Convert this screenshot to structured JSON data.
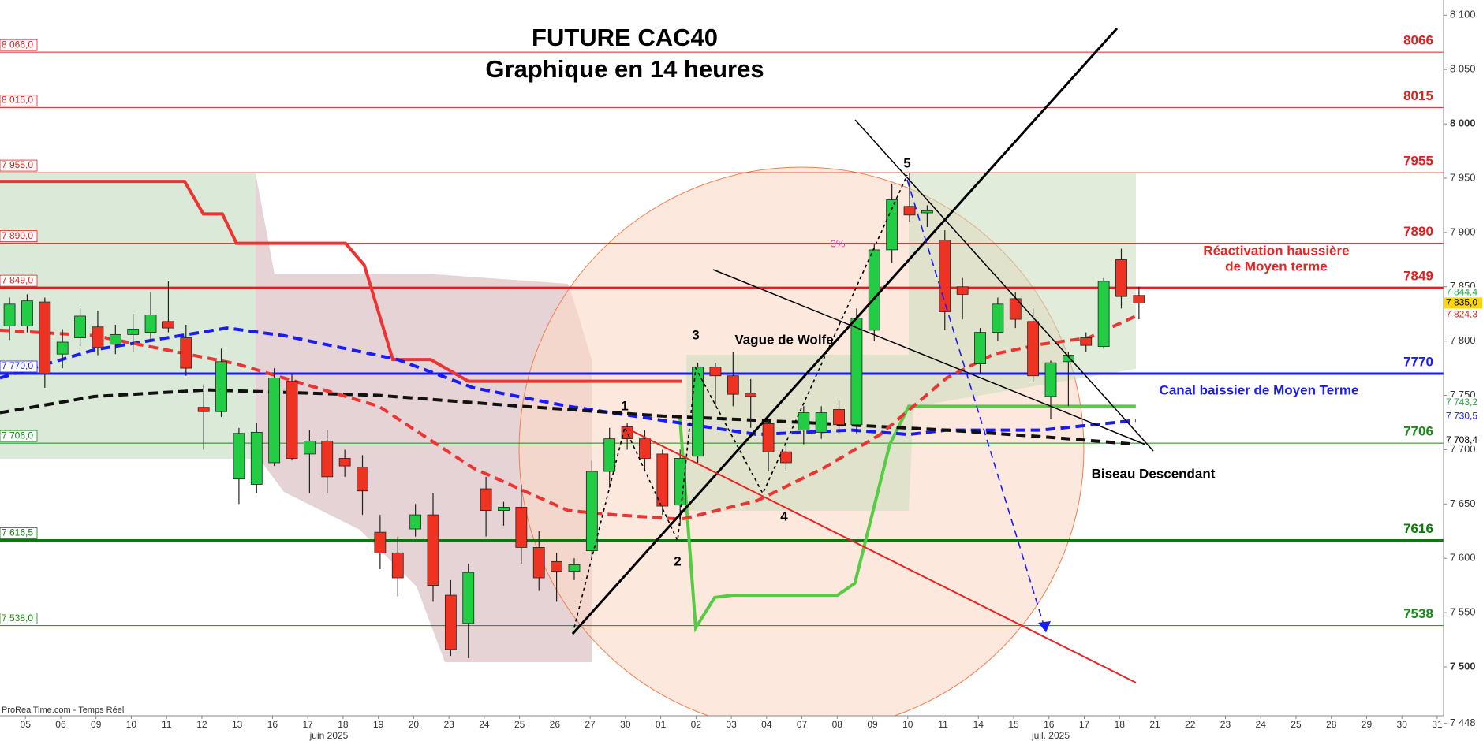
{
  "chart_data": {
    "type": "candlestick",
    "title": "FUTURE CAC40",
    "subtitle": "Graphique en 14 heures",
    "source": "ProRealTime.com - Temps Réel",
    "x": [
      -0.45,
      0.05,
      0.55,
      1.05,
      1.55,
      2.05,
      2.55,
      3.05,
      3.55,
      4.05,
      4.55,
      5.05,
      5.55,
      6.05,
      6.55,
      7.05,
      7.55,
      8.05,
      8.55,
      9.05,
      9.55,
      10.05,
      10.55,
      11.05,
      11.55,
      12.05,
      12.55,
      13.05,
      13.55,
      14.05,
      14.55,
      15.05,
      15.55,
      16.05,
      16.55,
      17.05,
      17.55,
      18.05,
      18.55,
      19.05,
      19.55,
      20.05,
      20.55,
      21.05,
      21.55,
      22.05,
      22.55,
      23.05,
      23.55,
      24.05,
      24.55,
      25.05,
      25.55,
      26.05,
      26.55,
      27.05,
      27.55,
      28.05,
      28.55,
      29.05,
      29.55,
      30.05,
      30.55,
      31.05,
      31.55
    ],
    "open": [
      7814,
      7814,
      7836,
      7788,
      7803,
      7813,
      7797,
      7806,
      7808,
      7818,
      7803,
      7739,
      7735,
      7673,
      7668,
      7688,
      7763,
      7696,
      7708,
      7692,
      7684,
      7624,
      7605,
      7627,
      7640,
      7566,
      7540,
      7664,
      7644,
      7647,
      7610,
      7597,
      7588,
      7607,
      7680,
      7721,
      7710,
      7696,
      7649,
      7694,
      7776,
      7768,
      7752,
      7724,
      7698,
      7718,
      7716,
      7737,
      7723,
      7810,
      7884,
      7924,
      7918,
      7893,
      7850,
      7779,
      7808,
      7839,
      7818,
      7749,
      7781,
      7803,
      7795,
      7875,
      7842
    ],
    "high": [
      7840,
      7843,
      7840,
      7811,
      7830,
      7828,
      7815,
      7825,
      7845,
      7855,
      7815,
      7760,
      7793,
      7720,
      7725,
      7775,
      7770,
      7718,
      7718,
      7700,
      7695,
      7640,
      7620,
      7650,
      7660,
      7580,
      7595,
      7675,
      7652,
      7668,
      7625,
      7605,
      7600,
      7690,
      7720,
      7725,
      7718,
      7700,
      7700,
      7780,
      7780,
      7790,
      7765,
      7728,
      7705,
      7740,
      7740,
      7745,
      7830,
      7890,
      7945,
      7955,
      7925,
      7902,
      7858,
      7812,
      7840,
      7845,
      7830,
      7782,
      7790,
      7808,
      7858,
      7885,
      7850
    ],
    "low": [
      7801,
      7808,
      7757,
      7775,
      7795,
      7787,
      7788,
      7790,
      7800,
      7808,
      7768,
      7700,
      7730,
      7650,
      7660,
      7685,
      7690,
      7660,
      7660,
      7675,
      7640,
      7590,
      7565,
      7620,
      7560,
      7510,
      7508,
      7620,
      7630,
      7595,
      7570,
      7560,
      7580,
      7600,
      7665,
      7700,
      7680,
      7640,
      7630,
      7688,
      7740,
      7740,
      7720,
      7680,
      7680,
      7705,
      7710,
      7715,
      7715,
      7800,
      7872,
      7910,
      7905,
      7810,
      7820,
      7770,
      7800,
      7812,
      7762,
      7728,
      7740,
      7790,
      7793,
      7830,
      7820
    ],
    "close": [
      7834,
      7837,
      7770,
      7799,
      7823,
      7794,
      7806,
      7811,
      7824,
      7812,
      7775,
      7735,
      7781,
      7715,
      7716,
      7766,
      7692,
      7708,
      7675,
      7685,
      7662,
      7605,
      7582,
      7640,
      7575,
      7516,
      7587,
      7644,
      7647,
      7610,
      7582,
      7588,
      7594,
      7680,
      7710,
      7710,
      7692,
      7648,
      7692,
      7776,
      7768,
      7751,
      7749,
      7698,
      7688,
      7734,
      7734,
      7723,
      7821,
      7884,
      7930,
      7916,
      7920,
      7827,
      7843,
      7808,
      7834,
      7820,
      7768,
      7780,
      7787,
      7796,
      7855,
      7841,
      7835
    ],
    "up_color": "#22cc44",
    "down_color": "#ee3322",
    "xlim": [
      -0.72,
      40.18
    ],
    "ylim": [
      7455,
      8114
    ],
    "xticks": [
      {
        "value": 0,
        "label": "05"
      },
      {
        "value": 1,
        "label": "06"
      },
      {
        "value": 2,
        "label": "09"
      },
      {
        "value": 3,
        "label": "10"
      },
      {
        "value": 4,
        "label": "11"
      },
      {
        "value": 5,
        "label": "12"
      },
      {
        "value": 6,
        "label": "13"
      },
      {
        "value": 7,
        "label": "16"
      },
      {
        "value": 8,
        "label": "17"
      },
      {
        "value": 9,
        "label": "18"
      },
      {
        "value": 10,
        "label": "19"
      },
      {
        "value": 11,
        "label": "20"
      },
      {
        "value": 12,
        "label": "23"
      },
      {
        "value": 13,
        "label": "24"
      },
      {
        "value": 14,
        "label": "25"
      },
      {
        "value": 15,
        "label": "26"
      },
      {
        "value": 16,
        "label": "27"
      },
      {
        "value": 17,
        "label": "30"
      },
      {
        "value": 18,
        "label": "01"
      },
      {
        "value": 19,
        "label": "02"
      },
      {
        "value": 20,
        "label": "03"
      },
      {
        "value": 21,
        "label": "04"
      },
      {
        "value": 22,
        "label": "07"
      },
      {
        "value": 23,
        "label": "08"
      },
      {
        "value": 24,
        "label": "09"
      },
      {
        "value": 25,
        "label": "10"
      },
      {
        "value": 26,
        "label": "11"
      },
      {
        "value": 27,
        "label": "14"
      },
      {
        "value": 28,
        "label": "15"
      },
      {
        "value": 29,
        "label": "16"
      },
      {
        "value": 30,
        "label": "17"
      },
      {
        "value": 31,
        "label": "18"
      },
      {
        "value": 32,
        "label": "21"
      },
      {
        "value": 33,
        "label": "22"
      },
      {
        "value": 34,
        "label": "23"
      },
      {
        "value": 35,
        "label": "24"
      },
      {
        "value": 36,
        "label": "25"
      },
      {
        "value": 37,
        "label": "28"
      },
      {
        "value": 38,
        "label": "29"
      },
      {
        "value": 39,
        "label": "30"
      },
      {
        "value": 40,
        "label": "31"
      }
    ],
    "month_labels": [
      {
        "value": 8.6,
        "label": "juin 2025"
      },
      {
        "value": 29.05,
        "label": "juil. 2025"
      }
    ],
    "yticks": [
      {
        "value": 7448,
        "label": "7 448"
      },
      {
        "value": 7500,
        "label": "7 500"
      },
      {
        "value": 7550,
        "label": "7 550"
      },
      {
        "value": 7600,
        "label": "7 600"
      },
      {
        "value": 7650,
        "label": "7 650"
      },
      {
        "value": 7700,
        "label": "7 700"
      },
      {
        "value": 7750,
        "label": "7 750"
      },
      {
        "value": 7800,
        "label": "7 800"
      },
      {
        "value": 7850,
        "label": "7 850"
      },
      {
        "value": 7900,
        "label": "7 900"
      },
      {
        "value": 7950,
        "label": "7 950"
      },
      {
        "value": 8000,
        "label": "8 000"
      },
      {
        "value": 8050,
        "label": "8 050"
      },
      {
        "value": 8100,
        "label": "8 100"
      }
    ],
    "levels": [
      {
        "value": 8066,
        "left_label": "8 066,0",
        "right_label": "8066",
        "color": "#e02020",
        "weight": "thin"
      },
      {
        "value": 8015,
        "left_label": "8 015,0",
        "right_label": "8015",
        "color": "#e02020",
        "weight": "thin"
      },
      {
        "value": 7955,
        "left_label": "7 955,0",
        "right_label": "7955",
        "color": "#e02020",
        "weight": "thin"
      },
      {
        "value": 7890,
        "left_label": "7 890,0",
        "right_label": "7890",
        "color": "#e02020",
        "weight": "thin"
      },
      {
        "value": 7849,
        "left_label": "7 849,0",
        "right_label": "7849",
        "color": "#e02020",
        "weight": "thick"
      },
      {
        "value": 7770,
        "left_label": "7 770,0",
        "right_label": "7770",
        "color": "#1a1aff",
        "weight": "thick"
      },
      {
        "value": 7706,
        "left_label": "7 706,0",
        "right_label": "7706",
        "color": "#1a8a1a",
        "weight": "thin"
      },
      {
        "value": 7616.5,
        "left_label": "7 616,5",
        "right_label": "7616",
        "color": "#0a7a0a",
        "weight": "thick"
      },
      {
        "value": 7538,
        "left_label": "7 538,0",
        "right_label": "7538",
        "color": "#1a8a1a",
        "weight": "thin"
      }
    ],
    "price_tags": [
      {
        "value": 7844.4,
        "label": "7 844,4",
        "color": "#22aa44",
        "fill": "#ffffff"
      },
      {
        "value": 7835,
        "label": "7 835,0",
        "color": "#000000",
        "fill": "#ffd700"
      },
      {
        "value": 7824.3,
        "label": "7 824,3",
        "color": "#e02020",
        "fill": "#ffffff"
      },
      {
        "value": 7743.2,
        "label": "7 743,2",
        "color": "#22aa44",
        "fill": "#ffffff"
      },
      {
        "value": 7730.5,
        "label": "7 730,5",
        "color": "#1a1aff",
        "fill": "#ffffff"
      },
      {
        "value": 7708.4,
        "label": "7 708,4",
        "color": "#000000",
        "fill": "#ffffff"
      }
    ],
    "lines": [
      {
        "color": "#ee3333",
        "dashed": false,
        "weight": "thick",
        "x": [
          -0.72,
          4.51,
          5.04,
          5.58,
          5.98,
          9.07,
          9.6,
          10.41,
          11.48,
          12.55,
          18.59
        ],
        "values": [
          7947,
          7947,
          7917,
          7917,
          7890,
          7890,
          7870,
          7783,
          7783,
          7763,
          7763
        ]
      },
      {
        "color": "#55cc44",
        "dashed": false,
        "weight": "thick",
        "x": [
          18.54,
          18.99,
          19.53,
          20.06,
          23.01,
          23.5,
          24.49,
          25.03,
          31.46
        ],
        "values": [
          7731,
          7536,
          7564,
          7566,
          7566,
          7577,
          7705,
          7740,
          7740
        ]
      },
      {
        "color": "#1a1aff",
        "dashed": true,
        "weight": "thick",
        "x": [
          -0.72,
          1.96,
          5.71,
          7.32,
          10.54,
          12.69,
          15.37,
          18.05,
          20.73,
          23.42,
          25.03,
          26.1,
          28.78,
          31.46
        ],
        "values": [
          7766,
          7792,
          7812,
          7805,
          7783,
          7757,
          7740,
          7727,
          7714,
          7718,
          7714,
          7718,
          7718,
          7727
        ]
      },
      {
        "color": "#111111",
        "dashed": true,
        "weight": "thick",
        "x": [
          -0.72,
          1.96,
          5.18,
          10.01,
          14.03,
          18.05,
          22.08,
          26.1,
          28.78,
          31.46
        ],
        "values": [
          7734,
          7749,
          7755,
          7750,
          7740,
          7731,
          7725,
          7718,
          7712,
          7705
        ]
      },
      {
        "color": "#ee3333",
        "dashed": true,
        "weight": "thick",
        "x": [
          -0.72,
          1.96,
          5.98,
          10.01,
          12.69,
          15.37,
          16.71,
          18.59,
          20.73,
          22.61,
          24.22,
          26.1,
          27.44,
          28.78,
          30.12,
          31.46
        ],
        "values": [
          7810,
          7805,
          7779,
          7740,
          7683,
          7644,
          7640,
          7636,
          7653,
          7683,
          7714,
          7766,
          7788,
          7797,
          7803,
          7823
        ]
      }
    ],
    "annotations": [
      "1",
      "2",
      "3",
      "4",
      "5",
      "Vague de Wolfe",
      "3%",
      "Réactivation haussière",
      "de Moyen terme",
      "Canal baissier de Moyen Terme",
      "Biseau Descendant"
    ]
  }
}
